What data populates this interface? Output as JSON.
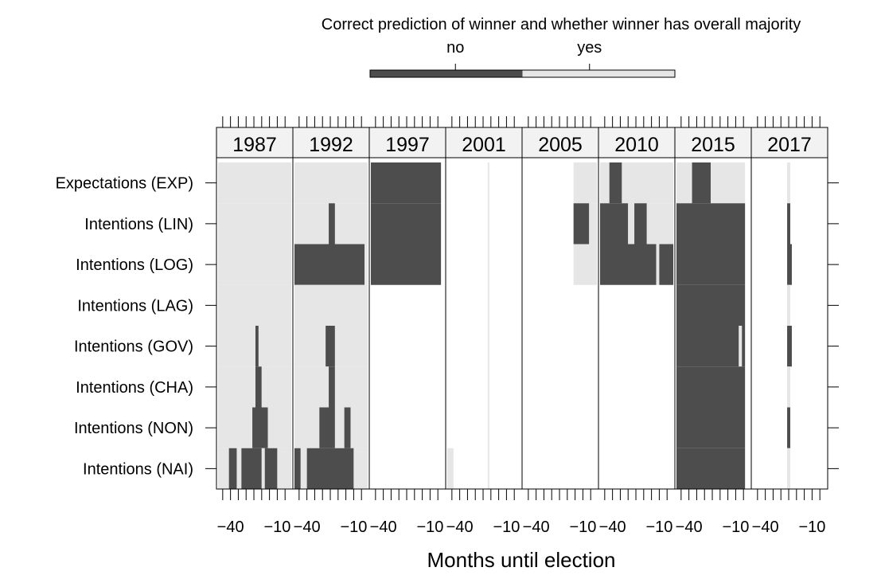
{
  "chart_data": {
    "type": "levelplot",
    "colorkey": {
      "title": "Correct prediction of winner and whether winner has overall majority",
      "labels": [
        "no",
        "yes"
      ],
      "colors": [
        "#4d4d4d",
        "#e6e6e6"
      ]
    },
    "xlabel": "Months until election",
    "categories": [
      "Expectations (EXP)",
      "Intentions (LIN)",
      "Intentions (LOG)",
      "Intentions (LAG)",
      "Intentions (GOV)",
      "Intentions (CHA)",
      "Intentions (NON)",
      "Intentions (NAI)"
    ],
    "xlim": [
      -49,
      0
    ],
    "xticks": [
      {
        "value": -40,
        "label": "−40"
      },
      {
        "value": -10,
        "label": "−10"
      }
    ],
    "minor_xticks": [
      -45,
      -35,
      -30,
      -25,
      -20,
      -15,
      -5
    ],
    "panels": [
      {
        "title": "1987",
        "rows": [
          [
            [
              -48,
              -1,
              1
            ]
          ],
          [
            [
              -48,
              -1,
              1
            ]
          ],
          [
            [
              -48,
              -1,
              1
            ]
          ],
          [
            [
              -48,
              -1,
              1
            ]
          ],
          [
            [
              -48,
              -24,
              1
            ],
            [
              -24,
              -22,
              0
            ],
            [
              -22,
              -1,
              1
            ]
          ],
          [
            [
              -48,
              -24,
              1
            ],
            [
              -24,
              -20,
              0
            ],
            [
              -20,
              -1,
              1
            ]
          ],
          [
            [
              -48,
              -26,
              1
            ],
            [
              -26,
              -16,
              0
            ],
            [
              -16,
              -1,
              1
            ]
          ],
          [
            [
              -48,
              -41,
              1
            ],
            [
              -41,
              -36,
              0
            ],
            [
              -36,
              -33,
              1
            ],
            [
              -33,
              -20,
              0
            ],
            [
              -20,
              -18,
              1
            ],
            [
              -18,
              -10,
              0
            ],
            [
              -10,
              -1,
              1
            ]
          ]
        ]
      },
      {
        "title": "1992",
        "rows": [
          [
            [
              -48,
              -1,
              1
            ]
          ],
          [
            [
              -48,
              -26,
              1
            ],
            [
              -26,
              -22,
              0
            ],
            [
              -22,
              -1,
              1
            ]
          ],
          [
            [
              -48,
              -3,
              0
            ],
            [
              -3,
              -1,
              1
            ]
          ],
          [
            [
              -48,
              -1,
              1
            ]
          ],
          [
            [
              -48,
              -28,
              1
            ],
            [
              -28,
              -22,
              0
            ],
            [
              -22,
              -1,
              1
            ]
          ],
          [
            [
              -48,
              -26,
              1
            ],
            [
              -26,
              -22,
              0
            ],
            [
              -22,
              -1,
              1
            ]
          ],
          [
            [
              -48,
              -32,
              1
            ],
            [
              -32,
              -22,
              0
            ],
            [
              -22,
              -16,
              1
            ],
            [
              -16,
              -12,
              0
            ],
            [
              -12,
              -1,
              1
            ]
          ],
          [
            [
              -48,
              -44,
              0
            ],
            [
              -44,
              -40,
              1
            ],
            [
              -40,
              -10,
              0
            ],
            [
              -10,
              -1,
              1
            ]
          ]
        ]
      },
      {
        "title": "1997",
        "rows": [
          [
            [
              -48,
              -3,
              0
            ]
          ],
          [
            [
              -48,
              -3,
              0
            ]
          ],
          [
            [
              -48,
              -3,
              0
            ]
          ],
          [],
          [],
          [],
          [],
          []
        ]
      },
      {
        "title": "2001",
        "rows": [
          [
            [
              -22,
              -21,
              1
            ]
          ],
          [
            [
              -22,
              -21,
              1
            ]
          ],
          [
            [
              -22,
              -21,
              1
            ]
          ],
          [
            [
              -22,
              -21,
              1
            ]
          ],
          [
            [
              -22,
              -21,
              1
            ]
          ],
          [
            [
              -22,
              -21,
              1
            ]
          ],
          [
            [
              -22,
              -21,
              1
            ]
          ],
          [
            [
              -48,
              -44,
              1
            ],
            [
              -22,
              -21,
              1
            ]
          ]
        ]
      },
      {
        "title": "2005",
        "rows": [
          [
            [
              -16,
              -1,
              1
            ]
          ],
          [
            [
              -16,
              -6,
              0
            ],
            [
              -6,
              -1,
              1
            ]
          ],
          [
            [
              -16,
              -1,
              1
            ]
          ],
          [],
          [],
          [],
          [],
          []
        ]
      },
      {
        "title": "2010",
        "rows": [
          [
            [
              -48,
              -42,
              1
            ],
            [
              -42,
              -34,
              0
            ],
            [
              -34,
              -1,
              1
            ]
          ],
          [
            [
              -48,
              -30,
              0
            ],
            [
              -30,
              -26,
              1
            ],
            [
              -26,
              -18,
              0
            ],
            [
              -18,
              -1,
              1
            ]
          ],
          [
            [
              -48,
              -12,
              0
            ],
            [
              -12,
              -10,
              1
            ],
            [
              -10,
              -1,
              0
            ]
          ],
          [],
          [],
          [],
          [],
          []
        ]
      },
      {
        "title": "2015",
        "rows": [
          [
            [
              -48,
              -38,
              1
            ],
            [
              -38,
              -26,
              0
            ],
            [
              -26,
              -4,
              1
            ]
          ],
          [
            [
              -48,
              -4,
              0
            ]
          ],
          [
            [
              -48,
              -4,
              0
            ]
          ],
          [
            [
              -48,
              -4,
              0
            ]
          ],
          [
            [
              -48,
              -8,
              0
            ],
            [
              -8,
              -6,
              1
            ],
            [
              -6,
              -4,
              0
            ]
          ],
          [
            [
              -48,
              -4,
              0
            ]
          ],
          [
            [
              -48,
              -4,
              0
            ]
          ],
          [
            [
              -48,
              -4,
              0
            ]
          ]
        ]
      },
      {
        "title": "2017",
        "rows": [
          [
            [
              -26,
              -24,
              1
            ]
          ],
          [
            [
              -26,
              -24,
              0
            ]
          ],
          [
            [
              -26,
              -23,
              0
            ]
          ],
          [
            [
              -26,
              -24,
              1
            ]
          ],
          [
            [
              -26,
              -23,
              0
            ]
          ],
          [
            [
              -26,
              -24,
              1
            ]
          ],
          [
            [
              -26,
              -24,
              0
            ]
          ],
          [
            [
              -26,
              -24,
              1
            ]
          ]
        ]
      }
    ]
  }
}
